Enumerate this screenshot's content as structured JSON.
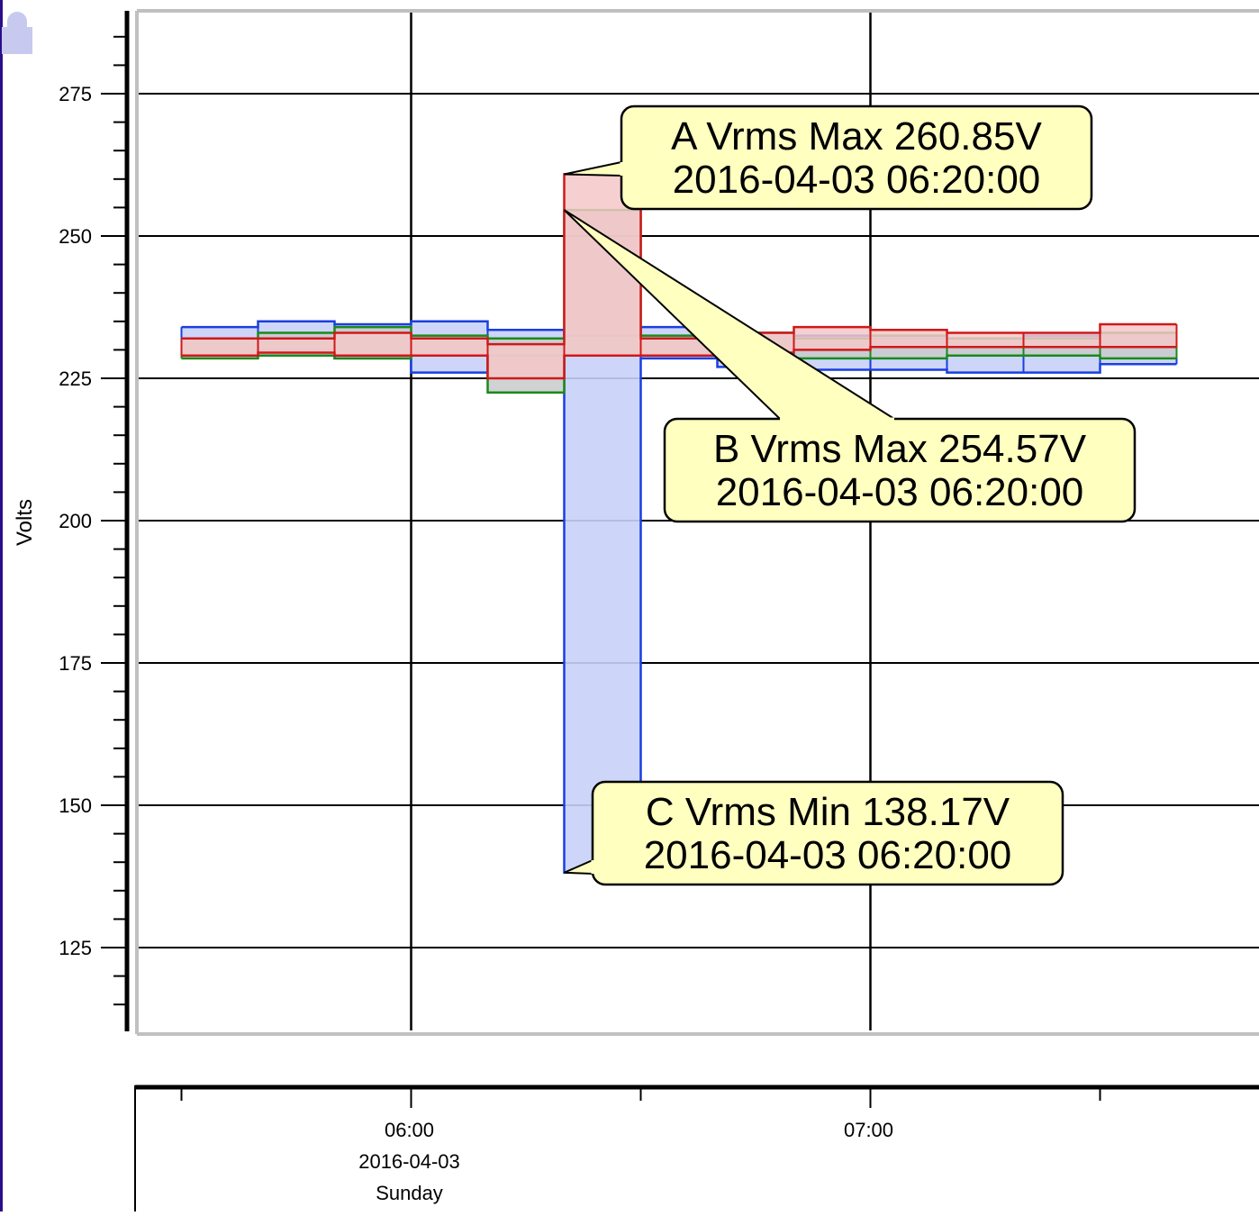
{
  "chart_data": {
    "type": "area",
    "title": "",
    "ylabel": "Volts",
    "xlabel": "",
    "ylim": [
      110,
      290
    ],
    "y_ticks": [
      125,
      150,
      175,
      200,
      225,
      250,
      275
    ],
    "y_tick_labels": [
      "125",
      "150",
      "175",
      "200",
      "225",
      "250",
      "275"
    ],
    "x_range": [
      "2016-04-03 05:35",
      "2016-04-03 07:35"
    ],
    "x_ticks": [
      {
        "time": "2016-04-03 06:00",
        "lines": [
          "06:00",
          "2016-04-03",
          "Sunday"
        ]
      },
      {
        "time": "2016-04-03 07:00",
        "lines": [
          "07:00"
        ]
      }
    ],
    "x_minor_ticks": [
      "2016-04-03 05:30",
      "2016-04-03 06:30",
      "2016-04-03 07:30"
    ],
    "grid": true,
    "series": [
      {
        "id": "A",
        "color": "#d01818",
        "fill": "#f4c8c8",
        "x": [
          "2016-04-03 05:30",
          "2016-04-03 05:40",
          "2016-04-03 05:50",
          "2016-04-03 06:00",
          "2016-04-03 06:10",
          "2016-04-03 06:20",
          "2016-04-03 06:30",
          "2016-04-03 06:40",
          "2016-04-03 06:50",
          "2016-04-03 07:00",
          "2016-04-03 07:10",
          "2016-04-03 07:20",
          "2016-04-03 07:30"
        ],
        "max": [
          232,
          232,
          233,
          232,
          231,
          260.85,
          232,
          233,
          234,
          233.5,
          233,
          233,
          234.5
        ],
        "min": [
          229,
          229.5,
          229,
          229,
          225,
          229,
          229,
          229.5,
          230,
          230.5,
          230.5,
          230.5,
          230.5
        ]
      },
      {
        "id": "B",
        "color": "#1a8a1a",
        "fill": "#c8cacc",
        "x": [
          "2016-04-03 05:30",
          "2016-04-03 05:40",
          "2016-04-03 05:50",
          "2016-04-03 06:00",
          "2016-04-03 06:10",
          "2016-04-03 06:20",
          "2016-04-03 06:30",
          "2016-04-03 06:40",
          "2016-04-03 06:50",
          "2016-04-03 07:00",
          "2016-04-03 07:10",
          "2016-04-03 07:20",
          "2016-04-03 07:30"
        ],
        "max": [
          232,
          233,
          234,
          232.5,
          232,
          254.57,
          232.5,
          233,
          232,
          232.5,
          232,
          232,
          233
        ],
        "min": [
          228.5,
          229,
          228.5,
          229,
          222.5,
          229,
          229,
          229,
          228.5,
          228.5,
          229,
          229,
          228.5
        ]
      },
      {
        "id": "C",
        "color": "#1a3fe0",
        "fill": "#c8d0f8",
        "x": [
          "2016-04-03 05:30",
          "2016-04-03 05:40",
          "2016-04-03 05:50",
          "2016-04-03 06:00",
          "2016-04-03 06:10",
          "2016-04-03 06:20",
          "2016-04-03 06:30",
          "2016-04-03 06:40",
          "2016-04-03 06:50",
          "2016-04-03 07:00",
          "2016-04-03 07:10",
          "2016-04-03 07:20",
          "2016-04-03 07:30"
        ],
        "max": [
          234,
          235,
          234.5,
          235,
          233.5,
          232.5,
          234,
          233,
          232.5,
          232,
          232,
          232.5,
          233
        ],
        "min": [
          229,
          230,
          228.5,
          226,
          229,
          138.17,
          228.5,
          227,
          226.5,
          226.5,
          226,
          226,
          227.5
        ]
      }
    ],
    "annotations": [
      {
        "series": "A",
        "lines": [
          "A Vrms Max 260.85V",
          "2016-04-03 06:20:00"
        ],
        "time": "2016-04-03 06:20",
        "value": 260.85
      },
      {
        "series": "B",
        "lines": [
          "B Vrms Max 254.57V",
          "2016-04-03 06:20:00"
        ],
        "time": "2016-04-03 06:20",
        "value": 254.57
      },
      {
        "series": "C",
        "lines": [
          "C Vrms Min 138.17V",
          "2016-04-03 06:20:00"
        ],
        "time": "2016-04-03 06:20",
        "value": 138.17
      }
    ]
  },
  "theme": {
    "callout_fill": "#ffffc0",
    "callout_stroke": "#000000",
    "grid_color": "#000000",
    "frame_color": "#c0c0c0",
    "sidebar_color": "#2a0e8a",
    "lock_icon_color": "#c7c9ee"
  },
  "icons": {
    "lock": "lock-icon"
  }
}
